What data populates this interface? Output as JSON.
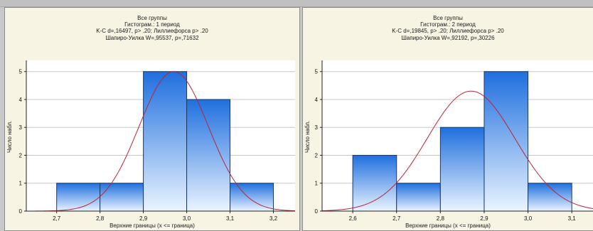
{
  "colors": {
    "panel_bg": "#f7f4e4",
    "plot_bg": "#ffffff",
    "grid": "#c8c8c8",
    "bar_top": "#1f6fde",
    "bar_bottom": "#eaf4ff",
    "bar_edge": "#1a3a66",
    "curve": "#b5263a",
    "axis": "#222222"
  },
  "chart_data": [
    {
      "type": "bar",
      "title": "Все группы",
      "subtitle": "Гистограм.: 1 период",
      "stats_line1": "K-C d=,16497, p> .20; Лиллиефорса p> .20",
      "stats_line2": "Шапиро-Уилка W=,95537, p=,71632",
      "xlabel": "Верхние границы (x <= граница)",
      "ylabel": "Число набл.",
      "bin_upper_bounds": [
        2.8,
        2.9,
        3.0,
        3.1,
        3.2
      ],
      "bin_width": 0.1,
      "values": [
        1,
        1,
        5,
        4,
        1
      ],
      "x_ticks": [
        "2,7",
        "2,8",
        "2,9",
        "3,0",
        "3,1",
        "3,2"
      ],
      "x_tick_values": [
        2.7,
        2.8,
        2.9,
        3.0,
        3.1,
        3.2
      ],
      "y_ticks": [
        0,
        1,
        2,
        3,
        4,
        5
      ],
      "xlim": [
        2.63,
        3.25
      ],
      "ylim": [
        0,
        5.4
      ],
      "fit_curve": {
        "type": "normal",
        "mean": 2.97,
        "sd": 0.08,
        "peak": 5.0
      },
      "grid": true
    },
    {
      "type": "bar",
      "title": "Все группы",
      "subtitle": "Гистограм.: 2 период",
      "stats_line1": "K-C d=,19845, p> .20; Лиллиефорса p> .20",
      "stats_line2": "Шапиро-Уилка W=,92192, p=,30226",
      "xlabel": "Верхние границы (x <= граница)",
      "ylabel": "Число набл.",
      "bin_upper_bounds": [
        2.7,
        2.8,
        2.9,
        3.0,
        3.1
      ],
      "bin_width": 0.1,
      "values": [
        2,
        1,
        3,
        5,
        1
      ],
      "x_ticks": [
        "2,6",
        "2,7",
        "2,8",
        "2,9",
        "3,0",
        "3,1"
      ],
      "x_tick_values": [
        2.6,
        2.7,
        2.8,
        2.9,
        3.0,
        3.1
      ],
      "y_ticks": [
        0,
        1,
        2,
        3,
        4,
        5
      ],
      "xlim": [
        2.53,
        3.15
      ],
      "ylim": [
        0,
        5.4
      ],
      "fit_curve": {
        "type": "normal",
        "mean": 2.87,
        "sd": 0.1,
        "peak": 4.3
      },
      "grid": true
    }
  ]
}
